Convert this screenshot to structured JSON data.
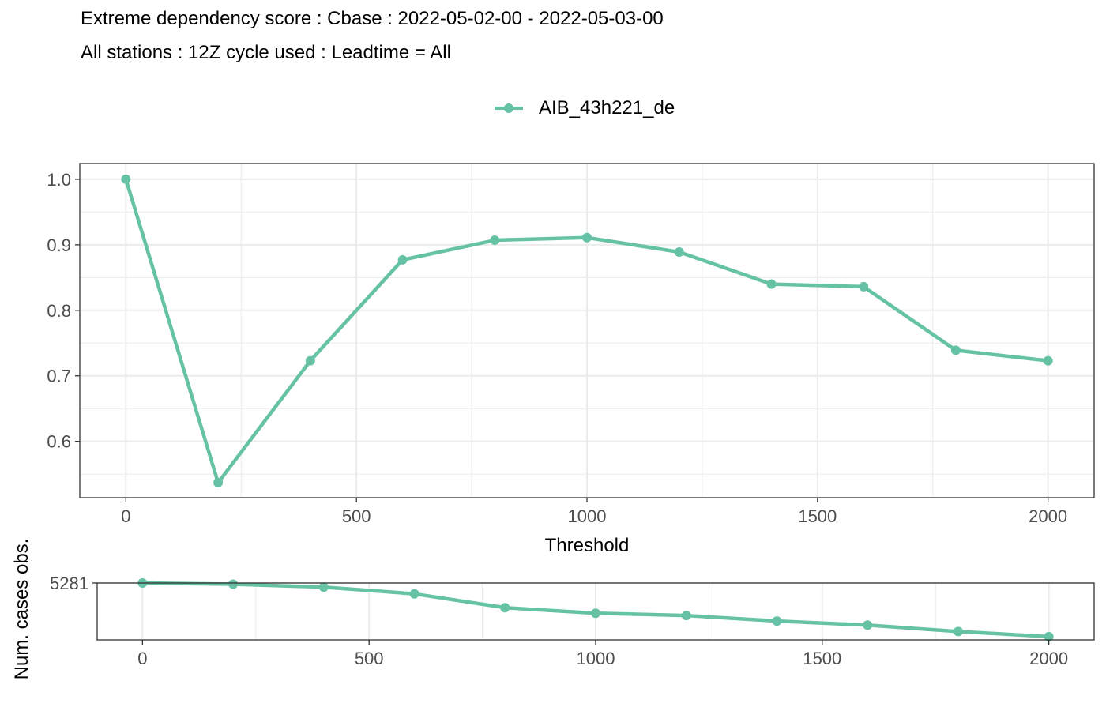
{
  "title": "Extreme dependency score : Cbase : 2022-05-02-00 - 2022-05-03-00",
  "subtitle": "All stations : 12Z cycle used : Leadtime = All",
  "colors": {
    "series": "#66c2a5",
    "grid": "#ebebeb",
    "panel_border": "#333333",
    "tick_text": "#4d4d4d"
  },
  "chart_data": [
    {
      "type": "line",
      "legend_position": "top",
      "grid": true,
      "xlabel": "Threshold",
      "ylabel": "",
      "xlim": [
        -100,
        2100
      ],
      "ylim": [
        0.514,
        1.024
      ],
      "xticks": [
        0,
        500,
        1000,
        1500,
        2000
      ],
      "xtick_labels": [
        "0",
        "500",
        "1000",
        "1500",
        "2000"
      ],
      "yticks": [
        0.6,
        0.7,
        0.8,
        0.9,
        1.0
      ],
      "ytick_labels": [
        "0.6",
        "0.7",
        "0.8",
        "0.9",
        "1.0"
      ],
      "series": [
        {
          "name": "AIB_43h221_de",
          "x": [
            0,
            200,
            400,
            600,
            800,
            1000,
            1200,
            1400,
            1600,
            1800,
            2000
          ],
          "y": [
            1.0,
            0.537,
            0.723,
            0.877,
            0.907,
            0.911,
            0.889,
            0.84,
            0.836,
            0.739,
            0.723
          ]
        }
      ]
    },
    {
      "type": "line",
      "grid": true,
      "xlabel": "",
      "ylabel": "Num. cases obs.",
      "xlim": [
        -100,
        2100
      ],
      "ylim": [
        3200,
        5281
      ],
      "xticks": [
        0,
        500,
        1000,
        1500,
        2000
      ],
      "xtick_labels": [
        "0",
        "500",
        "1000",
        "1500",
        "2000"
      ],
      "yticks": [
        5281
      ],
      "ytick_labels": [
        "5281"
      ],
      "series": [
        {
          "name": "",
          "x": [
            0,
            200,
            400,
            600,
            800,
            1000,
            1200,
            1400,
            1600,
            1800,
            2000
          ],
          "y": [
            5281,
            5237,
            5130,
            4885,
            4379,
            4177,
            4093,
            3890,
            3741,
            3506,
            3320
          ]
        }
      ]
    }
  ]
}
